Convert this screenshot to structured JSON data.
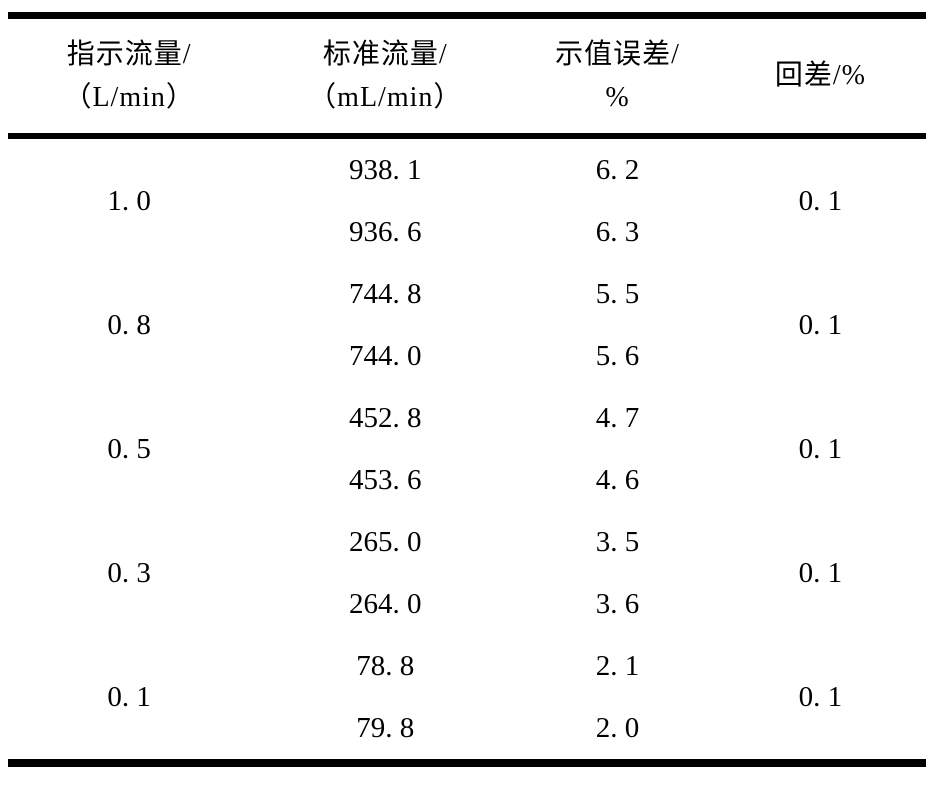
{
  "page": {
    "background_color": "#ffffff",
    "rule_color": "#000000"
  },
  "table": {
    "headers": [
      {
        "line1": "指示流量/",
        "line2": "（L/min）"
      },
      {
        "line1": "标准流量/",
        "line2": "（mL/min）"
      },
      {
        "line1": "示值误差/",
        "line2": "%"
      },
      {
        "line1": "回差/%"
      }
    ],
    "groups": [
      {
        "indicated": "1. 0",
        "standard": [
          "938. 1",
          "936. 6"
        ],
        "error": [
          "6. 2",
          "6. 3"
        ],
        "hysteresis": "0. 1"
      },
      {
        "indicated": "0. 8",
        "standard": [
          "744. 8",
          "744. 0"
        ],
        "error": [
          "5. 5",
          "5. 6"
        ],
        "hysteresis": "0. 1"
      },
      {
        "indicated": "0. 5",
        "standard": [
          "452. 8",
          "453. 6"
        ],
        "error": [
          "4. 7",
          "4. 6"
        ],
        "hysteresis": "0. 1"
      },
      {
        "indicated": "0. 3",
        "standard": [
          "265. 0",
          "264. 0"
        ],
        "error": [
          "3. 5",
          "3. 6"
        ],
        "hysteresis": "0. 1"
      },
      {
        "indicated": "0. 1",
        "standard": [
          "78. 8",
          "79. 8"
        ],
        "error": [
          "2. 1",
          "2. 0"
        ],
        "hysteresis": "0. 1"
      }
    ]
  },
  "chart_data": {
    "type": "table",
    "columns": [
      "指示流量/（L/min）",
      "标准流量/（mL/min）",
      "示值误差/%",
      "回差/%"
    ],
    "rows": [
      {
        "indicated_flow": 1.0,
        "standard_flow": [
          938.1,
          936.6
        ],
        "indication_error": [
          6.2,
          6.3
        ],
        "hysteresis": 0.1
      },
      {
        "indicated_flow": 0.8,
        "standard_flow": [
          744.8,
          744.0
        ],
        "indication_error": [
          5.5,
          5.6
        ],
        "hysteresis": 0.1
      },
      {
        "indicated_flow": 0.5,
        "standard_flow": [
          452.8,
          453.6
        ],
        "indication_error": [
          4.7,
          4.6
        ],
        "hysteresis": 0.1
      },
      {
        "indicated_flow": 0.3,
        "standard_flow": [
          265.0,
          264.0
        ],
        "indication_error": [
          3.5,
          3.6
        ],
        "hysteresis": 0.1
      },
      {
        "indicated_flow": 0.1,
        "standard_flow": [
          78.8,
          79.8
        ],
        "indication_error": [
          2.1,
          2.0
        ],
        "hysteresis": 0.1
      }
    ]
  }
}
